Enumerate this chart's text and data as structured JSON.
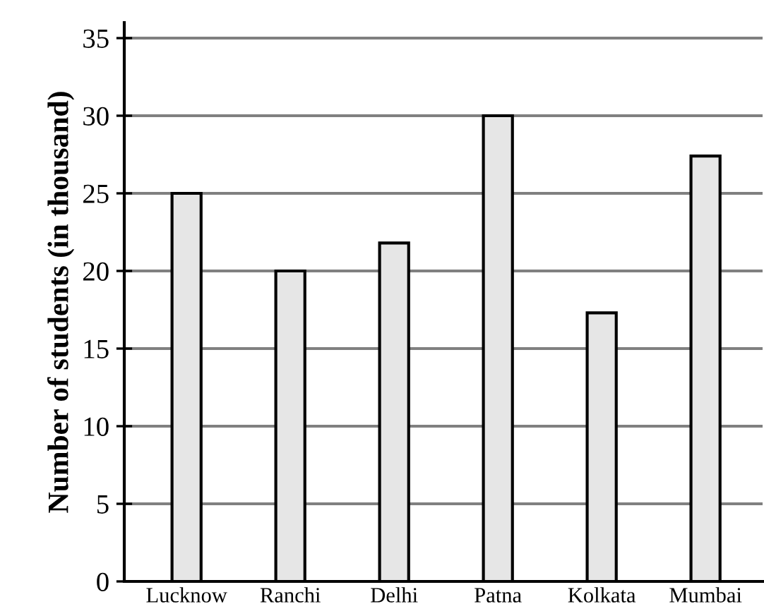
{
  "chart_data": {
    "type": "bar",
    "ylabel": "Number of students (in thousand)",
    "categories": [
      "Lucknow",
      "Ranchi",
      "Delhi",
      "Patna",
      "Kolkata",
      "Mumbai"
    ],
    "values": [
      25,
      20,
      21.8,
      30,
      17.3,
      27.4
    ],
    "color": "#e6e6e6",
    "ylim": [
      0,
      36
    ],
    "yticks": [
      0,
      5,
      10,
      15,
      20,
      25,
      30,
      35
    ],
    "grid": "y"
  }
}
